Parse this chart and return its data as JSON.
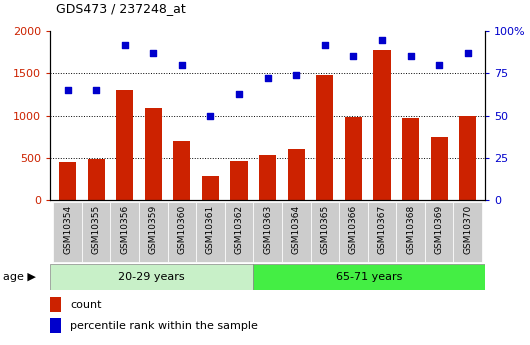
{
  "title": "GDS473 / 237248_at",
  "categories": [
    "GSM10354",
    "GSM10355",
    "GSM10356",
    "GSM10359",
    "GSM10360",
    "GSM10361",
    "GSM10362",
    "GSM10363",
    "GSM10364",
    "GSM10365",
    "GSM10366",
    "GSM10367",
    "GSM10368",
    "GSM10369",
    "GSM10370"
  ],
  "counts": [
    450,
    490,
    1300,
    1090,
    700,
    290,
    460,
    530,
    610,
    1480,
    980,
    1780,
    970,
    750,
    990
  ],
  "percentile": [
    65,
    65,
    92,
    87,
    80,
    50,
    63,
    72,
    74,
    92,
    85,
    95,
    85,
    80,
    87
  ],
  "group1_label": "20-29 years",
  "group2_label": "65-71 years",
  "group1_count": 7,
  "group2_count": 8,
  "bar_color": "#cc2200",
  "dot_color": "#0000cc",
  "group1_bg": "#c8f0c8",
  "group2_bg": "#44ee44",
  "tick_bg": "#cccccc",
  "ylim_left": [
    0,
    2000
  ],
  "ylim_right": [
    0,
    100
  ],
  "yticks_left": [
    0,
    500,
    1000,
    1500,
    2000
  ],
  "yticks_right": [
    0,
    25,
    50,
    75,
    100
  ],
  "xlabel_age": "age",
  "legend_count": "count",
  "legend_pct": "percentile rank within the sample"
}
